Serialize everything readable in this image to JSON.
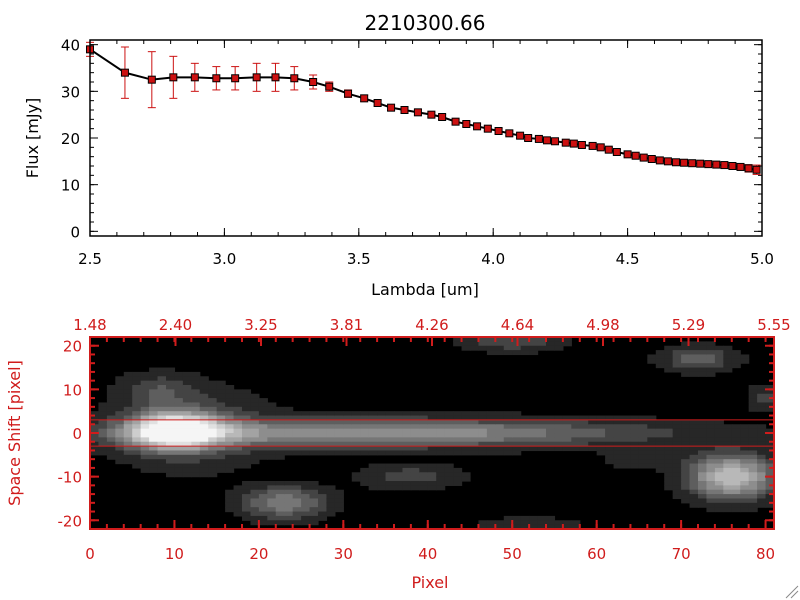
{
  "colors": {
    "accent": "#d01c1c",
    "line": "#000000",
    "marker": "#cc1111",
    "error": "#cc1111"
  },
  "chart_data": [
    {
      "type": "line",
      "title": "2210300.66",
      "xlabel": "Lambda [um]",
      "ylabel": "Flux [mJy]",
      "xlim": [
        2.5,
        5.0
      ],
      "ylim": [
        -1,
        41
      ],
      "x_ticks": [
        "2.5",
        "3.0",
        "3.5",
        "4.0",
        "4.5",
        "5.0"
      ],
      "y_ticks": [
        "0",
        "10",
        "20",
        "30",
        "40"
      ],
      "series": [
        {
          "x": [
            2.5,
            2.63,
            2.73,
            2.81,
            2.89,
            2.97,
            3.04,
            3.12,
            3.19,
            3.26,
            3.33,
            3.39,
            3.46,
            3.52,
            3.57,
            3.62,
            3.67,
            3.72,
            3.77,
            3.81,
            3.86,
            3.9,
            3.94,
            3.98,
            4.02,
            4.06,
            4.1,
            4.13,
            4.17,
            4.2,
            4.23,
            4.27,
            4.3,
            4.33,
            4.37,
            4.4,
            4.43,
            4.46,
            4.5,
            4.53,
            4.56,
            4.59,
            4.62,
            4.65,
            4.68,
            4.71,
            4.74,
            4.77,
            4.8,
            4.83,
            4.86,
            4.89,
            4.92,
            4.95,
            4.98
          ],
          "y": [
            39,
            34,
            32.5,
            33,
            33,
            32.8,
            32.8,
            33,
            33,
            32.8,
            32,
            31,
            29.5,
            28.5,
            27.5,
            26.5,
            26,
            25.5,
            25,
            24.5,
            23.5,
            23,
            22.5,
            22,
            21.5,
            21,
            20.5,
            20,
            19.8,
            19.5,
            19.3,
            19,
            18.8,
            18.5,
            18.3,
            18,
            17.5,
            17,
            16.5,
            16.2,
            15.8,
            15.5,
            15.2,
            15,
            14.8,
            14.7,
            14.6,
            14.5,
            14.4,
            14.3,
            14.2,
            14,
            13.8,
            13.5,
            13.2
          ],
          "err": [
            1.5,
            5.5,
            6,
            4.5,
            3,
            2.5,
            2.5,
            3,
            3,
            2.5,
            1.5,
            1,
            0.8,
            0.7,
            0.6,
            0.6,
            0.6,
            0.6,
            0.5,
            0.5,
            0.5,
            0.5,
            0.5,
            0.5,
            0.5,
            0.5,
            0.5,
            0.5,
            0.5,
            0.5,
            0.5,
            0.5,
            0.5,
            0.5,
            0.5,
            0.5,
            0.5,
            0.5,
            0.5,
            0.5,
            0.5,
            0.5,
            0.5,
            0.5,
            0.5,
            0.5,
            0.5,
            0.5,
            0.5,
            0.5,
            0.6,
            0.6,
            0.7,
            0.8,
            1.0
          ]
        }
      ]
    },
    {
      "type": "heatmap",
      "xlabel": "Pixel",
      "ylabel": "Space Shift [pixel]",
      "xlim": [
        0,
        81
      ],
      "ylim": [
        -22,
        22
      ],
      "x_ticks": [
        "0",
        "10",
        "20",
        "30",
        "40",
        "50",
        "60",
        "70",
        "80"
      ],
      "y_ticks": [
        "-20",
        "-10",
        "0",
        "10",
        "20"
      ],
      "top_ticks": [
        "1.48",
        "2.40",
        "3.25",
        "3.81",
        "4.26",
        "4.64",
        "4.98",
        "5.29",
        "5.55"
      ],
      "extraction_lines": [
        3,
        -3
      ],
      "blobs": [
        {
          "x": 10,
          "y": 0.5,
          "sx": 3.5,
          "sy": 2.8,
          "amp": 1.0
        },
        {
          "x": 34,
          "y": 0,
          "sx": 22,
          "sy": 2.2,
          "amp": 0.55
        },
        {
          "x": 12,
          "y": 1,
          "sx": 6,
          "sy": 6,
          "amp": 0.25
        },
        {
          "x": 23,
          "y": -16,
          "sx": 3.5,
          "sy": 2.5,
          "amp": 0.45
        },
        {
          "x": 38,
          "y": -10,
          "sx": 4,
          "sy": 2,
          "amp": 0.2
        },
        {
          "x": 76,
          "y": -10,
          "sx": 3.5,
          "sy": 3.5,
          "amp": 0.75
        },
        {
          "x": 72,
          "y": 17,
          "sx": 3,
          "sy": 2,
          "amp": 0.3
        },
        {
          "x": 50,
          "y": 21,
          "sx": 4,
          "sy": 1.5,
          "amp": 0.25
        },
        {
          "x": 8,
          "y": 10,
          "sx": 3,
          "sy": 2.5,
          "amp": 0.2
        },
        {
          "x": 65,
          "y": -6,
          "sx": 3,
          "sy": 1.5,
          "amp": 0.12
        },
        {
          "x": 80,
          "y": 8,
          "sx": 1.5,
          "sy": 2,
          "amp": 0.2
        },
        {
          "x": 52,
          "y": -21,
          "sx": 4,
          "sy": 1.2,
          "amp": 0.15
        }
      ]
    }
  ]
}
